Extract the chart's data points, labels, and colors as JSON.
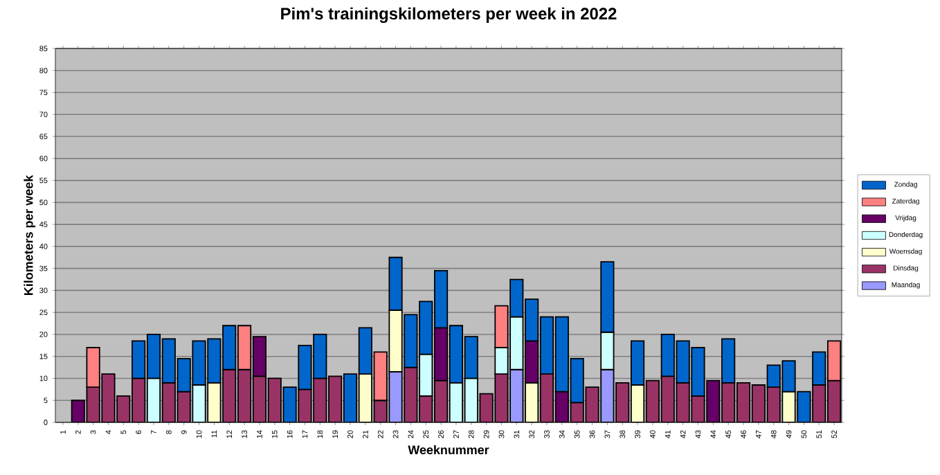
{
  "chart_data": {
    "type": "bar",
    "stacked": true,
    "title": "Pim's  trainingskilometers per week in 2022",
    "xlabel": "Weeknummer",
    "ylabel": "Kilometers per week",
    "categories": [
      "1",
      "2",
      "3",
      "4",
      "5",
      "6",
      "7",
      "8",
      "9",
      "10",
      "11",
      "12",
      "13",
      "14",
      "15",
      "16",
      "17",
      "18",
      "19",
      "20",
      "21",
      "22",
      "23",
      "24",
      "25",
      "26",
      "27",
      "28",
      "29",
      "30",
      "31",
      "32",
      "33",
      "34",
      "35",
      "36",
      "37",
      "38",
      "39",
      "40",
      "41",
      "42",
      "43",
      "44",
      "45",
      "46",
      "47",
      "48",
      "49",
      "50",
      "51",
      "52"
    ],
    "ylim": [
      0,
      85
    ],
    "yticks": [
      0,
      5,
      10,
      15,
      20,
      25,
      30,
      35,
      40,
      45,
      50,
      55,
      60,
      65,
      70,
      75,
      80,
      85
    ],
    "grid": "y",
    "legend": "right",
    "series": [
      {
        "name": "Maandag",
        "color": "#9999ff",
        "values": [
          null,
          null,
          null,
          null,
          null,
          null,
          null,
          null,
          null,
          null,
          null,
          null,
          null,
          null,
          null,
          null,
          null,
          null,
          null,
          null,
          null,
          null,
          11.5,
          null,
          null,
          null,
          null,
          null,
          null,
          null,
          12,
          null,
          null,
          null,
          null,
          null,
          12,
          null,
          null,
          null,
          null,
          null,
          null,
          null,
          null,
          null,
          null,
          null,
          null,
          null,
          null,
          null
        ]
      },
      {
        "name": "Dinsdag",
        "color": "#993366",
        "values": [
          null,
          null,
          8,
          11,
          6,
          10,
          null,
          9,
          7,
          null,
          null,
          12,
          12,
          10.5,
          10,
          null,
          7.5,
          10,
          10.5,
          null,
          null,
          5,
          null,
          12.5,
          6,
          9.5,
          null,
          null,
          6.5,
          11,
          null,
          null,
          11,
          null,
          4.5,
          8,
          null,
          9,
          null,
          9.5,
          10.5,
          9,
          6,
          null,
          9,
          9,
          8.5,
          8,
          null,
          null,
          8.5,
          9.5
        ]
      },
      {
        "name": "Woensdag",
        "color": "#ffffcc",
        "values": [
          null,
          null,
          null,
          null,
          null,
          null,
          null,
          null,
          null,
          null,
          9,
          null,
          null,
          null,
          null,
          null,
          null,
          null,
          null,
          null,
          11,
          null,
          14,
          null,
          null,
          null,
          null,
          null,
          null,
          null,
          null,
          9,
          null,
          null,
          null,
          null,
          null,
          null,
          8.5,
          null,
          null,
          null,
          null,
          null,
          null,
          null,
          null,
          null,
          7,
          null,
          null,
          null
        ]
      },
      {
        "name": "Donderdag",
        "color": "#ccffff",
        "values": [
          null,
          null,
          null,
          null,
          null,
          null,
          10,
          null,
          null,
          8.5,
          null,
          null,
          null,
          null,
          null,
          null,
          null,
          null,
          null,
          null,
          null,
          null,
          null,
          null,
          9.5,
          null,
          9,
          10,
          null,
          6,
          12,
          null,
          null,
          null,
          null,
          null,
          8.5,
          null,
          null,
          null,
          null,
          null,
          null,
          null,
          null,
          null,
          null,
          null,
          null,
          null,
          null,
          null
        ]
      },
      {
        "name": "Vrijdag",
        "color": "#660066",
        "values": [
          null,
          5,
          null,
          null,
          null,
          null,
          null,
          null,
          null,
          null,
          null,
          null,
          null,
          9,
          null,
          null,
          null,
          null,
          null,
          null,
          null,
          null,
          null,
          null,
          null,
          12,
          null,
          null,
          null,
          null,
          null,
          9.5,
          null,
          7,
          null,
          null,
          null,
          null,
          null,
          null,
          null,
          null,
          null,
          9.5,
          null,
          null,
          null,
          null,
          null,
          null,
          null,
          null
        ]
      },
      {
        "name": "Zaterdag",
        "color": "#ff8080",
        "values": [
          null,
          null,
          9,
          null,
          null,
          null,
          null,
          null,
          null,
          null,
          null,
          null,
          10,
          null,
          null,
          null,
          null,
          null,
          null,
          null,
          null,
          11,
          null,
          null,
          null,
          null,
          null,
          null,
          null,
          9.5,
          null,
          null,
          null,
          null,
          null,
          null,
          null,
          null,
          null,
          null,
          null,
          null,
          null,
          null,
          null,
          null,
          null,
          null,
          null,
          null,
          null,
          9
        ]
      },
      {
        "name": "Zondag",
        "color": "#0066cc",
        "values": [
          null,
          null,
          null,
          null,
          null,
          8.5,
          10,
          10,
          7.5,
          10,
          10,
          10,
          null,
          null,
          null,
          8,
          10,
          10,
          null,
          11,
          10.5,
          null,
          12,
          12,
          12,
          13,
          13,
          9.5,
          null,
          null,
          8.5,
          9.5,
          13,
          17,
          10,
          null,
          16,
          null,
          10,
          null,
          9.5,
          9.5,
          11,
          null,
          10,
          null,
          null,
          5,
          7,
          7,
          7.5,
          null
        ]
      }
    ]
  }
}
